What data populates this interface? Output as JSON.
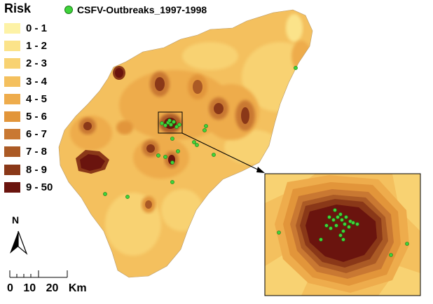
{
  "legend": {
    "title": "Risk",
    "classes": [
      {
        "label": "0 - 1",
        "color": "#fdf2a6"
      },
      {
        "label": "1 - 2",
        "color": "#fbe38a"
      },
      {
        "label": "2 - 3",
        "color": "#f8d272"
      },
      {
        "label": "3 - 4",
        "color": "#f4c05e"
      },
      {
        "label": "4 - 5",
        "color": "#eeac4c"
      },
      {
        "label": "5 - 6",
        "color": "#e2953a"
      },
      {
        "label": "6 - 7",
        "color": "#c97832"
      },
      {
        "label": "7 - 8",
        "color": "#ab5a25"
      },
      {
        "label": "8 - 9",
        "color": "#8a3818"
      },
      {
        "label": "9 - 50",
        "color": "#6a140e"
      }
    ]
  },
  "outbreaks": {
    "label": "CSFV-Outbreaks_1997-1998",
    "color": "#3ed43a"
  },
  "north_arrow": {
    "label": "N"
  },
  "scale_bar": {
    "labels": [
      "0",
      "10",
      "20",
      "Km"
    ]
  }
}
